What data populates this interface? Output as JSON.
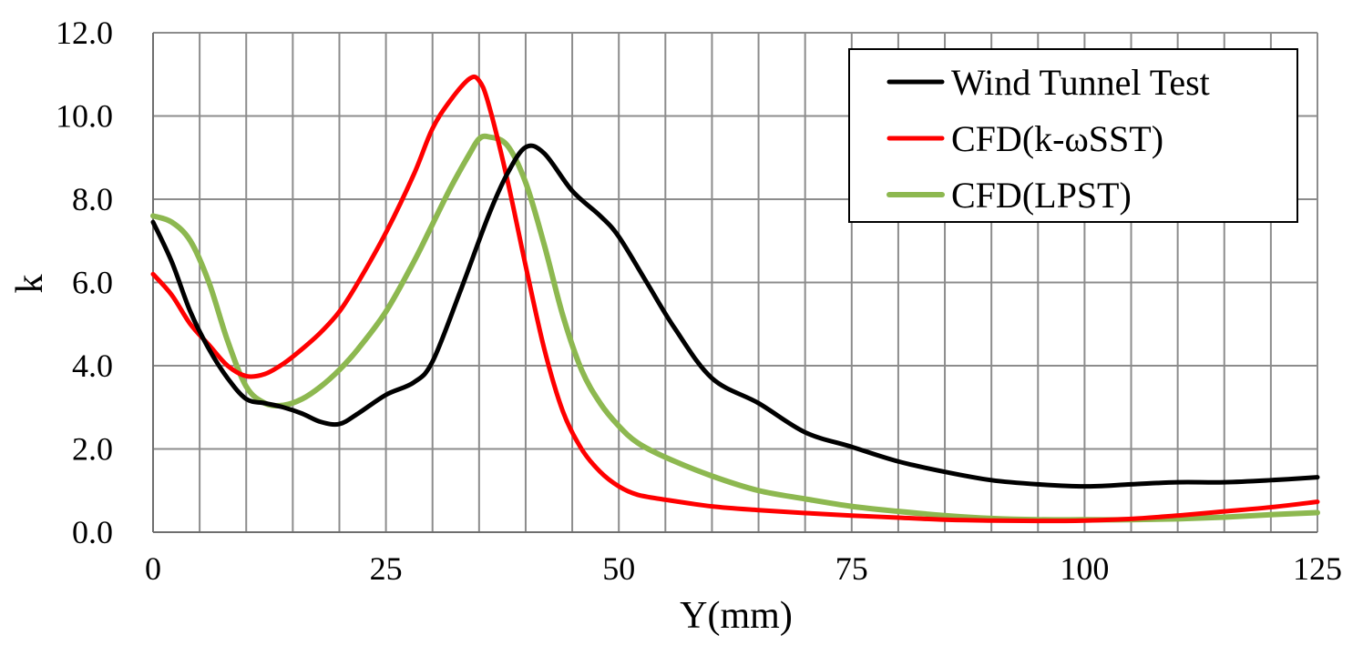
{
  "chart_data": {
    "type": "line",
    "title": "",
    "xlabel": "Y(mm)",
    "ylabel": "k",
    "xlim": [
      0,
      125
    ],
    "ylim": [
      0,
      12
    ],
    "x_major_ticks": [
      0,
      25,
      50,
      75,
      100,
      125
    ],
    "x_minor_step": 5,
    "y_ticks": [
      0,
      2,
      4,
      6,
      8,
      10,
      12
    ],
    "y_tick_labels": [
      "0.0",
      "2.0",
      "4.0",
      "6.0",
      "8.0",
      "10.0",
      "12.0"
    ],
    "x_tick_labels": [
      "0",
      "25",
      "50",
      "75",
      "100",
      "125"
    ],
    "grid": true,
    "legend_position": "top-right",
    "series": [
      {
        "name": "Wind Tunnel Test",
        "color": "#000000",
        "x": [
          0,
          2,
          4,
          6,
          8,
          10,
          12,
          14,
          16,
          18,
          20,
          22,
          25,
          28,
          30,
          33,
          36,
          38,
          40,
          42,
          45,
          48,
          50,
          53,
          56,
          60,
          65,
          70,
          75,
          80,
          85,
          90,
          95,
          100,
          105,
          110,
          115,
          120,
          125
        ],
        "y": [
          7.45,
          6.5,
          5.3,
          4.4,
          3.7,
          3.2,
          3.1,
          3.0,
          2.85,
          2.65,
          2.6,
          2.85,
          3.3,
          3.6,
          4.1,
          5.8,
          7.6,
          8.6,
          9.25,
          9.1,
          8.2,
          7.6,
          7.1,
          6.0,
          4.9,
          3.7,
          3.1,
          2.4,
          2.05,
          1.7,
          1.45,
          1.25,
          1.15,
          1.1,
          1.15,
          1.2,
          1.2,
          1.25,
          1.32
        ]
      },
      {
        "name": "CFD(k-ωSST)",
        "color": "#ff0000",
        "x": [
          0,
          2,
          4,
          6,
          8,
          10,
          12,
          14,
          16,
          18,
          20,
          22,
          25,
          28,
          30,
          32,
          34,
          35,
          36,
          38,
          40,
          42,
          44,
          46,
          48,
          50,
          52,
          55,
          60,
          65,
          70,
          75,
          80,
          85,
          90,
          95,
          100,
          105,
          110,
          115,
          120,
          125
        ],
        "y": [
          6.2,
          5.7,
          5.0,
          4.5,
          4.0,
          3.75,
          3.8,
          4.05,
          4.4,
          4.8,
          5.3,
          6.0,
          7.2,
          8.6,
          9.7,
          10.4,
          10.9,
          10.85,
          10.3,
          8.5,
          6.4,
          4.4,
          2.9,
          2.0,
          1.45,
          1.1,
          0.9,
          0.78,
          0.62,
          0.53,
          0.46,
          0.4,
          0.35,
          0.3,
          0.28,
          0.27,
          0.28,
          0.32,
          0.4,
          0.5,
          0.6,
          0.73
        ]
      },
      {
        "name": "CFD(LPST)",
        "color": "#8db850",
        "x": [
          0,
          2,
          4,
          6,
          8,
          10,
          12,
          14,
          16,
          18,
          20,
          22,
          25,
          28,
          30,
          32,
          34,
          35,
          36,
          38,
          40,
          42,
          44,
          46,
          48,
          50,
          52,
          55,
          60,
          65,
          70,
          75,
          80,
          85,
          90,
          95,
          100,
          105,
          110,
          115,
          120,
          125
        ],
        "y": [
          7.6,
          7.45,
          7.0,
          6.0,
          4.6,
          3.5,
          3.1,
          3.05,
          3.2,
          3.5,
          3.9,
          4.4,
          5.3,
          6.5,
          7.4,
          8.3,
          9.1,
          9.45,
          9.5,
          9.3,
          8.4,
          6.9,
          5.2,
          3.9,
          3.1,
          2.55,
          2.15,
          1.8,
          1.35,
          1.0,
          0.8,
          0.62,
          0.5,
          0.4,
          0.33,
          0.3,
          0.3,
          0.3,
          0.32,
          0.36,
          0.42,
          0.47
        ]
      }
    ]
  }
}
